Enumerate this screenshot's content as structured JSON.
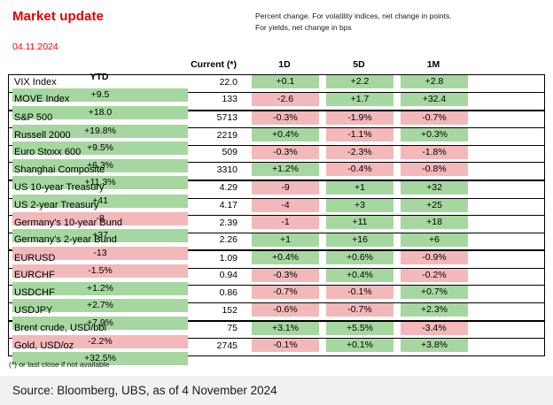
{
  "title": "Market update",
  "date": "04.11.2024",
  "notes": [
    "Percent change. For volatility indices, net change in points.",
    "For yields, net change in bps"
  ],
  "footnote": "(*) or last close if not available",
  "source": "Source: Bloomberg, UBS, as of 4 November 2024",
  "colors": {
    "title_red": "#e60000",
    "positive_bg": "#a6d7a0",
    "negative_bg": "#f3b8ba"
  },
  "chart_data": {
    "type": "table",
    "title": "Market update",
    "columns": [
      "Current (*)",
      "1D",
      "5D",
      "1M",
      "YTD"
    ],
    "rows": [
      {
        "label": "VIX Index",
        "current": "22.0",
        "changes": [
          "+0.1",
          "+2.2",
          "+2.8",
          "+9.5"
        ]
      },
      {
        "label": "MOVE Index",
        "current": "133",
        "changes": [
          "-2.6",
          "+1.7",
          "+32.4",
          "+18.0"
        ]
      },
      {
        "label": "S&P 500",
        "current": "5713",
        "changes": [
          "-0.3%",
          "-1.9%",
          "-0.7%",
          "+19.8%"
        ],
        "section_start": true
      },
      {
        "label": "Russell 2000",
        "current": "2219",
        "changes": [
          "+0.4%",
          "-1.1%",
          "+0.3%",
          "+9.5%"
        ]
      },
      {
        "label": "Euro Stoxx 600",
        "current": "509",
        "changes": [
          "-0.3%",
          "-2.3%",
          "-1.8%",
          "+6.3%"
        ]
      },
      {
        "label": "Shanghai Composite",
        "current": "3310",
        "changes": [
          "+1.2%",
          "-0.4%",
          "-0.8%",
          "+11.3%"
        ]
      },
      {
        "label": "US 10-year Treasury",
        "current": "4.29",
        "changes": [
          "-9",
          "+1",
          "+32",
          "+41"
        ],
        "section_start": true
      },
      {
        "label": "US 2-year Treasury",
        "current": "4.17",
        "changes": [
          "-4",
          "+3",
          "+25",
          "-8"
        ]
      },
      {
        "label": "Germany's 10-year Bund",
        "current": "2.39",
        "changes": [
          "-1",
          "+11",
          "+18",
          "+37"
        ]
      },
      {
        "label": "Germany's 2-year Bund",
        "current": "2.26",
        "changes": [
          "+1",
          "+16",
          "+6",
          "-13"
        ]
      },
      {
        "label": "EURUSD",
        "current": "1.09",
        "changes": [
          "+0.4%",
          "+0.6%",
          "-0.9%",
          "-1.5%"
        ],
        "section_start": true
      },
      {
        "label": "EURCHF",
        "current": "0.94",
        "changes": [
          "-0.3%",
          "+0.4%",
          "-0.2%",
          "+1.2%"
        ]
      },
      {
        "label": "USDCHF",
        "current": "0.86",
        "changes": [
          "-0.7%",
          "-0.1%",
          "+0.7%",
          "+2.7%"
        ]
      },
      {
        "label": "USDJPY",
        "current": "152",
        "changes": [
          "-0.6%",
          "-0.7%",
          "+2.3%",
          "+7.9%"
        ]
      },
      {
        "label": "Brent crude, USD/bbl",
        "current": "75",
        "changes": [
          "+3.1%",
          "+5.5%",
          "-3.4%",
          "-2.2%"
        ],
        "section_start": true
      },
      {
        "label": "Gold,  USD/oz",
        "current": "2745",
        "changes": [
          "-0.1%",
          "+0.1%",
          "+3.8%",
          "+32.5%"
        ]
      }
    ]
  }
}
